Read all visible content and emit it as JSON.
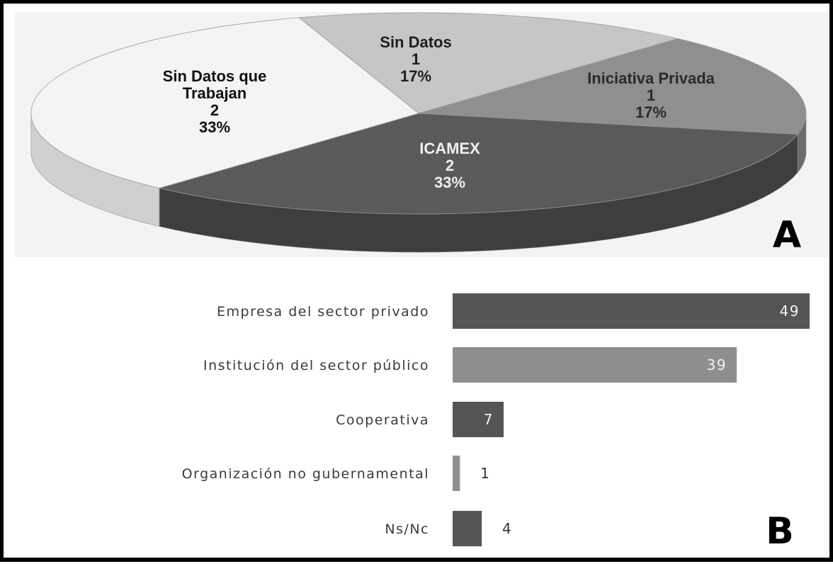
{
  "charts": [
    {
      "type": "pie",
      "panel_label": "A",
      "slices": [
        {
          "label": "Sin Datos",
          "count": "1",
          "percent": "17%",
          "color": "#c6c6c6",
          "side": "#a9a9a9",
          "text_color": "#1e1e1e"
        },
        {
          "label": "Iniciativa Privada",
          "count": "1",
          "percent": "17%",
          "color": "#8f8f8f",
          "side": "#6c6c6c",
          "text_color": "#2a2a2a"
        },
        {
          "label": "ICAMEX",
          "count": "2",
          "percent": "33%",
          "color": "#5a5a5a",
          "side": "#3e3e3e",
          "text_color": "#f0f0f0"
        },
        {
          "label": "Sin Datos que Trabajan",
          "count": "2",
          "percent": "33%",
          "color": "#f4f4f4",
          "side": "#d0d0d0",
          "text_color": "#111111"
        }
      ]
    },
    {
      "type": "bar",
      "orientation": "horizontal",
      "panel_label": "B",
      "categories": [
        "Empresa del sector privado",
        "Institución del sector público",
        "Cooperativa",
        "Organización no gubernamental",
        "Ns/Nc"
      ],
      "values": [
        49,
        39,
        7,
        1,
        4
      ],
      "colors": [
        "#555555",
        "#8e8e8e",
        "#555555",
        "#8e8e8e",
        "#555555"
      ]
    }
  ]
}
